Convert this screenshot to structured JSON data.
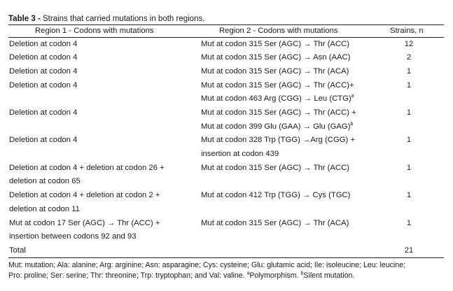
{
  "table": {
    "label": "Table 3 -",
    "caption": "Strains that carried mutations in both regions.",
    "headers": [
      "Region 1 - Codons with mutations",
      "Region 2 - Codons with mutations",
      "Strains, n"
    ],
    "rows": [
      {
        "r1": [
          "Deletion at codon 4"
        ],
        "r2": [
          {
            "t": "Mut at codon 315 Ser (AGC) → Thr (ACC)"
          }
        ],
        "n": "12"
      },
      {
        "r1": [
          "Deletion at codon 4"
        ],
        "r2": [
          {
            "t": "Mut at codon 315 Ser (AGC) → Asn (AAC)"
          }
        ],
        "n": "2"
      },
      {
        "r1": [
          "Deletion at codon 4"
        ],
        "r2": [
          {
            "t": "Mut at codon 315 Ser (AGC) → Thr (ACA)"
          }
        ],
        "n": "1"
      },
      {
        "r1": [
          "Deletion at codon 4"
        ],
        "r2": [
          {
            "t": "Mut at codon 315 Ser (AGC) → Thr (ACC)+"
          },
          {
            "t": "Mut at codon 463 Arg (CGG) → Leu (CTG)",
            "sup": "a"
          }
        ],
        "n": "1"
      },
      {
        "r1": [
          "Deletion at codon 4"
        ],
        "r2": [
          {
            "t": "Mut at codon 315 Ser (AGC) → Thr (ACC) +"
          },
          {
            "t": "Mut at codon 399 Glu (GAA) → Glu (GAG)",
            "sup": "b"
          }
        ],
        "n": "1"
      },
      {
        "r1": [
          "Deletion at codon 4"
        ],
        "r2": [
          {
            "t": "Mut at codon 328 Trp (TGG) →Arg (CGG) +"
          },
          {
            "t": "insertion at codon 439"
          }
        ],
        "n": "1"
      },
      {
        "r1": [
          "Deletion at codon 4 + deletion at codon 26 +",
          "deletion at codon 65"
        ],
        "r2": [
          {
            "t": "Mut at codon 315 Ser (AGC) → Thr (ACC)"
          }
        ],
        "n": "1"
      },
      {
        "r1": [
          "Deletion at codon 4 + deletion at codon 2 +",
          "deletion at codon 11"
        ],
        "r2": [
          {
            "t": "Mut at codon 412 Trp (TGG) → Cys (TGC)"
          }
        ],
        "n": "1"
      },
      {
        "r1": [
          "Mut at codon 17 Ser (AGC) → Thr (ACC) +",
          "insertion between codons 92 and 93"
        ],
        "r2": [
          {
            "t": "Mut at codon 315 Ser (AGC) → Thr (ACA)"
          }
        ],
        "n": "1"
      }
    ],
    "total_label": "Total",
    "total_value": "21",
    "footnote_line1": "Mut: mutation; Ala: alanine; Arg: arginine; Asn: asparagine; Cys: cysteine; Glu: glutamic acid; Ile: isoleucine; Leu: leucine;",
    "footnote_line2": "Pro: proline; Ser: serine; Thr: threonine; Trp: tryptophan; and Val: valine.",
    "footnote_a_mark": "a",
    "footnote_a": "Polymorphism.",
    "footnote_b_mark": "b",
    "footnote_b": "Silent mutation."
  }
}
